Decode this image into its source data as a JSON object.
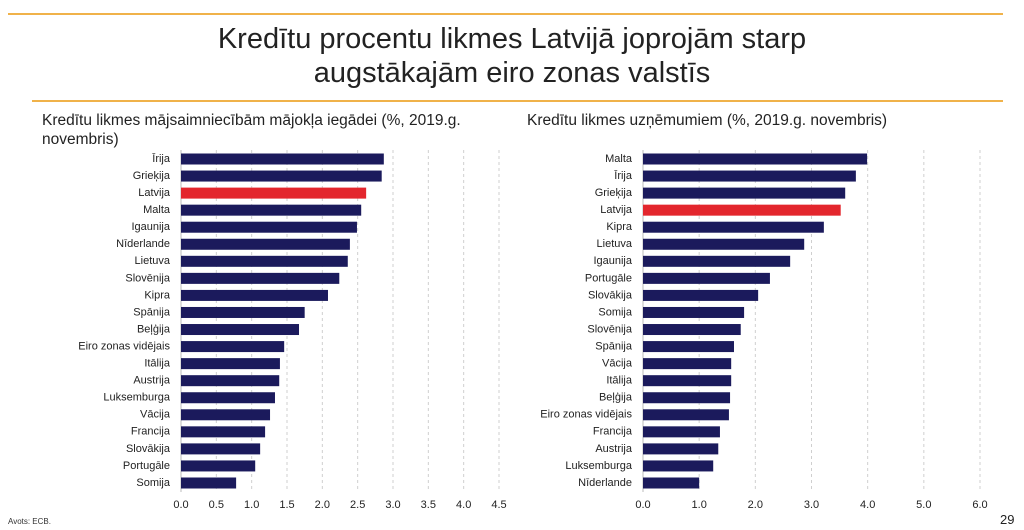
{
  "slide": {
    "title": "Kredītu procentu likmes Latvijā joprojām starp augstākajām eiro zonas valstīs",
    "source": "Avots: ECB.",
    "page": "29"
  },
  "chart_data": [
    {
      "type": "hbar",
      "title": "Kredītu likmes mājsaimniecībām mājokļa iegādei (%, 2019.g. novembris)",
      "categories": [
        "Īrija",
        "Grieķija",
        "Latvija",
        "Malta",
        "Igaunija",
        "Nīderlande",
        "Lietuva",
        "Slovēnija",
        "Kipra",
        "Spānija",
        "Beļģija",
        "Eiro zonas vidējais",
        "Itālija",
        "Austrija",
        "Luksemburga",
        "Vācija",
        "Francija",
        "Slovākija",
        "Portugāle",
        "Somija"
      ],
      "values": [
        2.87,
        2.84,
        2.62,
        2.55,
        2.49,
        2.39,
        2.36,
        2.24,
        2.08,
        1.75,
        1.67,
        1.46,
        1.4,
        1.39,
        1.33,
        1.26,
        1.19,
        1.12,
        1.05,
        0.78
      ],
      "colors": [
        "#1b1a5c",
        "#1b1a5c",
        "#e3262d",
        "#1b1a5c",
        "#1b1a5c",
        "#1b1a5c",
        "#1b1a5c",
        "#1b1a5c",
        "#1b1a5c",
        "#1b1a5c",
        "#1b1a5c",
        "#1b1a5c",
        "#1b1a5c",
        "#1b1a5c",
        "#1b1a5c",
        "#1b1a5c",
        "#1b1a5c",
        "#1b1a5c",
        "#1b1a5c",
        "#1b1a5c"
      ],
      "xlim": [
        0,
        4.5
      ],
      "xticks": [
        {
          "value": 0,
          "label": "0.0"
        },
        0.5,
        {
          "value": 1,
          "label": "1.0"
        },
        1.5,
        {
          "value": 2,
          "label": "2.0"
        },
        2.5,
        {
          "value": 3,
          "label": "3.0"
        },
        3.5,
        {
          "value": 4,
          "label": "4.0"
        },
        4.5
      ],
      "grid": true
    },
    {
      "type": "hbar",
      "title": "Kredītu likmes uzņēmumiem (%, 2019.g. novembris)",
      "categories": [
        "Malta",
        "Īrija",
        "Grieķija",
        "Latvija",
        "Kipra",
        "Lietuva",
        "Igaunija",
        "Portugāle",
        "Slovākija",
        "Somija",
        "Slovēnija",
        "Spānija",
        "Vācija",
        "Itālija",
        "Beļģija",
        "Eiro zonas vidējais",
        "Francija",
        "Austrija",
        "Luksemburga",
        "Nīderlande"
      ],
      "values": [
        3.99,
        3.79,
        3.6,
        3.52,
        3.22,
        2.87,
        2.62,
        2.26,
        2.05,
        1.8,
        1.74,
        1.62,
        1.57,
        1.57,
        1.55,
        1.53,
        1.37,
        1.34,
        1.25,
        1.0
      ],
      "colors": [
        "#1b1a5c",
        "#1b1a5c",
        "#1b1a5c",
        "#e3262d",
        "#1b1a5c",
        "#1b1a5c",
        "#1b1a5c",
        "#1b1a5c",
        "#1b1a5c",
        "#1b1a5c",
        "#1b1a5c",
        "#1b1a5c",
        "#1b1a5c",
        "#1b1a5c",
        "#1b1a5c",
        "#1b1a5c",
        "#1b1a5c",
        "#1b1a5c",
        "#1b1a5c",
        "#1b1a5c"
      ],
      "xlim": [
        0,
        6
      ],
      "xticks": [
        {
          "value": 0,
          "label": "0.0"
        },
        {
          "value": 1,
          "label": "1.0"
        },
        {
          "value": 2,
          "label": "2.0"
        },
        {
          "value": 3,
          "label": "3.0"
        },
        {
          "value": 4,
          "label": "4.0"
        },
        {
          "value": 5,
          "label": "5.0"
        },
        {
          "value": 6,
          "label": "6.0"
        }
      ],
      "grid": true
    }
  ]
}
